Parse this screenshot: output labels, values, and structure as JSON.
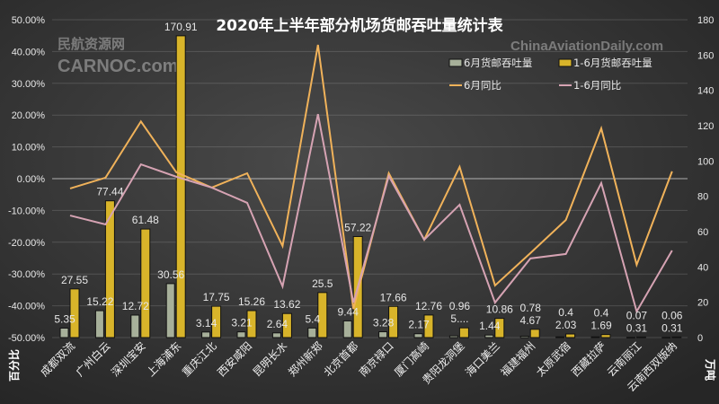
{
  "chart_data": {
    "type": "bar+line",
    "title": "2020年上半年部分机场货邮吞吐量统计表",
    "categories": [
      "成都双流",
      "广州白云",
      "深圳宝安",
      "上海浦东",
      "重庆江北",
      "西安咸阳",
      "昆明长水",
      "郑州新郑",
      "北京首都",
      "南京禄口",
      "厦门高崎",
      "贵阳龙洞堡",
      "海口美兰",
      "福建福州",
      "太原武宿",
      "西藏拉萨",
      "云南丽江",
      "云南西双版纳"
    ],
    "left_axis": {
      "label": "百分比",
      "ylim": [
        -50,
        50
      ],
      "ticks": [
        "50.00%",
        "40.00%",
        "30.00%",
        "20.00%",
        "10.00%",
        "0.00%",
        "-10.00%",
        "-20.00%",
        "-30.00%",
        "-40.00%",
        "-50.00%"
      ]
    },
    "right_axis": {
      "label": "万吨",
      "ylim": [
        0,
        180
      ],
      "ticks": [
        "180",
        "160",
        "140",
        "120",
        "100",
        "80",
        "60",
        "40",
        "20",
        "0"
      ]
    },
    "grid": true,
    "legend_position": "top-right",
    "series": [
      {
        "name": "6月货邮吞吐量",
        "type": "bar",
        "axis": "right",
        "color": "#a7b09a",
        "values": [
          5.35,
          15.22,
          12.72,
          30.56,
          3.14,
          3.21,
          2.64,
          5.4,
          9.44,
          3.28,
          2.17,
          0.96,
          1.44,
          0.78,
          0.4,
          0.4,
          0.07,
          0.06
        ],
        "labels": [
          "5.35",
          "15.22",
          "12.72",
          "30.56",
          "3.14",
          "3.21",
          "2.64",
          "5.4",
          "9.44",
          "3.28",
          "2.17",
          "0.96",
          "1.44",
          "0.78",
          "0.4",
          "0.4",
          "0.07",
          "0.06"
        ]
      },
      {
        "name": "1-6月货邮吞吐量",
        "type": "bar",
        "axis": "right",
        "color": "#d8b42a",
        "values": [
          27.55,
          77.44,
          61.48,
          170.91,
          17.75,
          15.26,
          13.62,
          25.5,
          57.22,
          17.66,
          12.76,
          5.5,
          10.86,
          4.67,
          2.03,
          1.69,
          0.31,
          0.31
        ],
        "labels": [
          "27.55",
          "77.44",
          "61.48",
          "170.91",
          "17.75",
          "15.26",
          "13.62",
          "25.5",
          "57.22",
          "17.66",
          "12.76",
          "5....",
          "10.86",
          "4.67",
          "2.03",
          "1.69",
          "0.31",
          "0.31"
        ]
      },
      {
        "name": "6月同比",
        "type": "line",
        "axis": "left",
        "color": "#f0b25a",
        "values": [
          -3.1,
          0.3,
          18.0,
          2.0,
          -2.8,
          1.7,
          -21.2,
          42.1,
          -41.0,
          1.7,
          -19.2,
          3.7,
          -33.6,
          -23.4,
          -13.0,
          15.8,
          -27.1,
          2.3
        ]
      },
      {
        "name": "1-6月同比",
        "type": "line",
        "axis": "left",
        "color": "#d6a3b3",
        "values": [
          -11.6,
          -14.4,
          4.5,
          0.6,
          -2.8,
          -7.6,
          -33.9,
          20.3,
          -39.0,
          0.8,
          -19.2,
          -8.2,
          -39.0,
          -25.1,
          -23.7,
          -1.4,
          -41.8,
          -22.6
        ]
      }
    ]
  },
  "watermarks": {
    "left_cn": "民航资源网",
    "left_en": "CARNOC.com",
    "right_en": "ChinaAviationDaily.com"
  }
}
